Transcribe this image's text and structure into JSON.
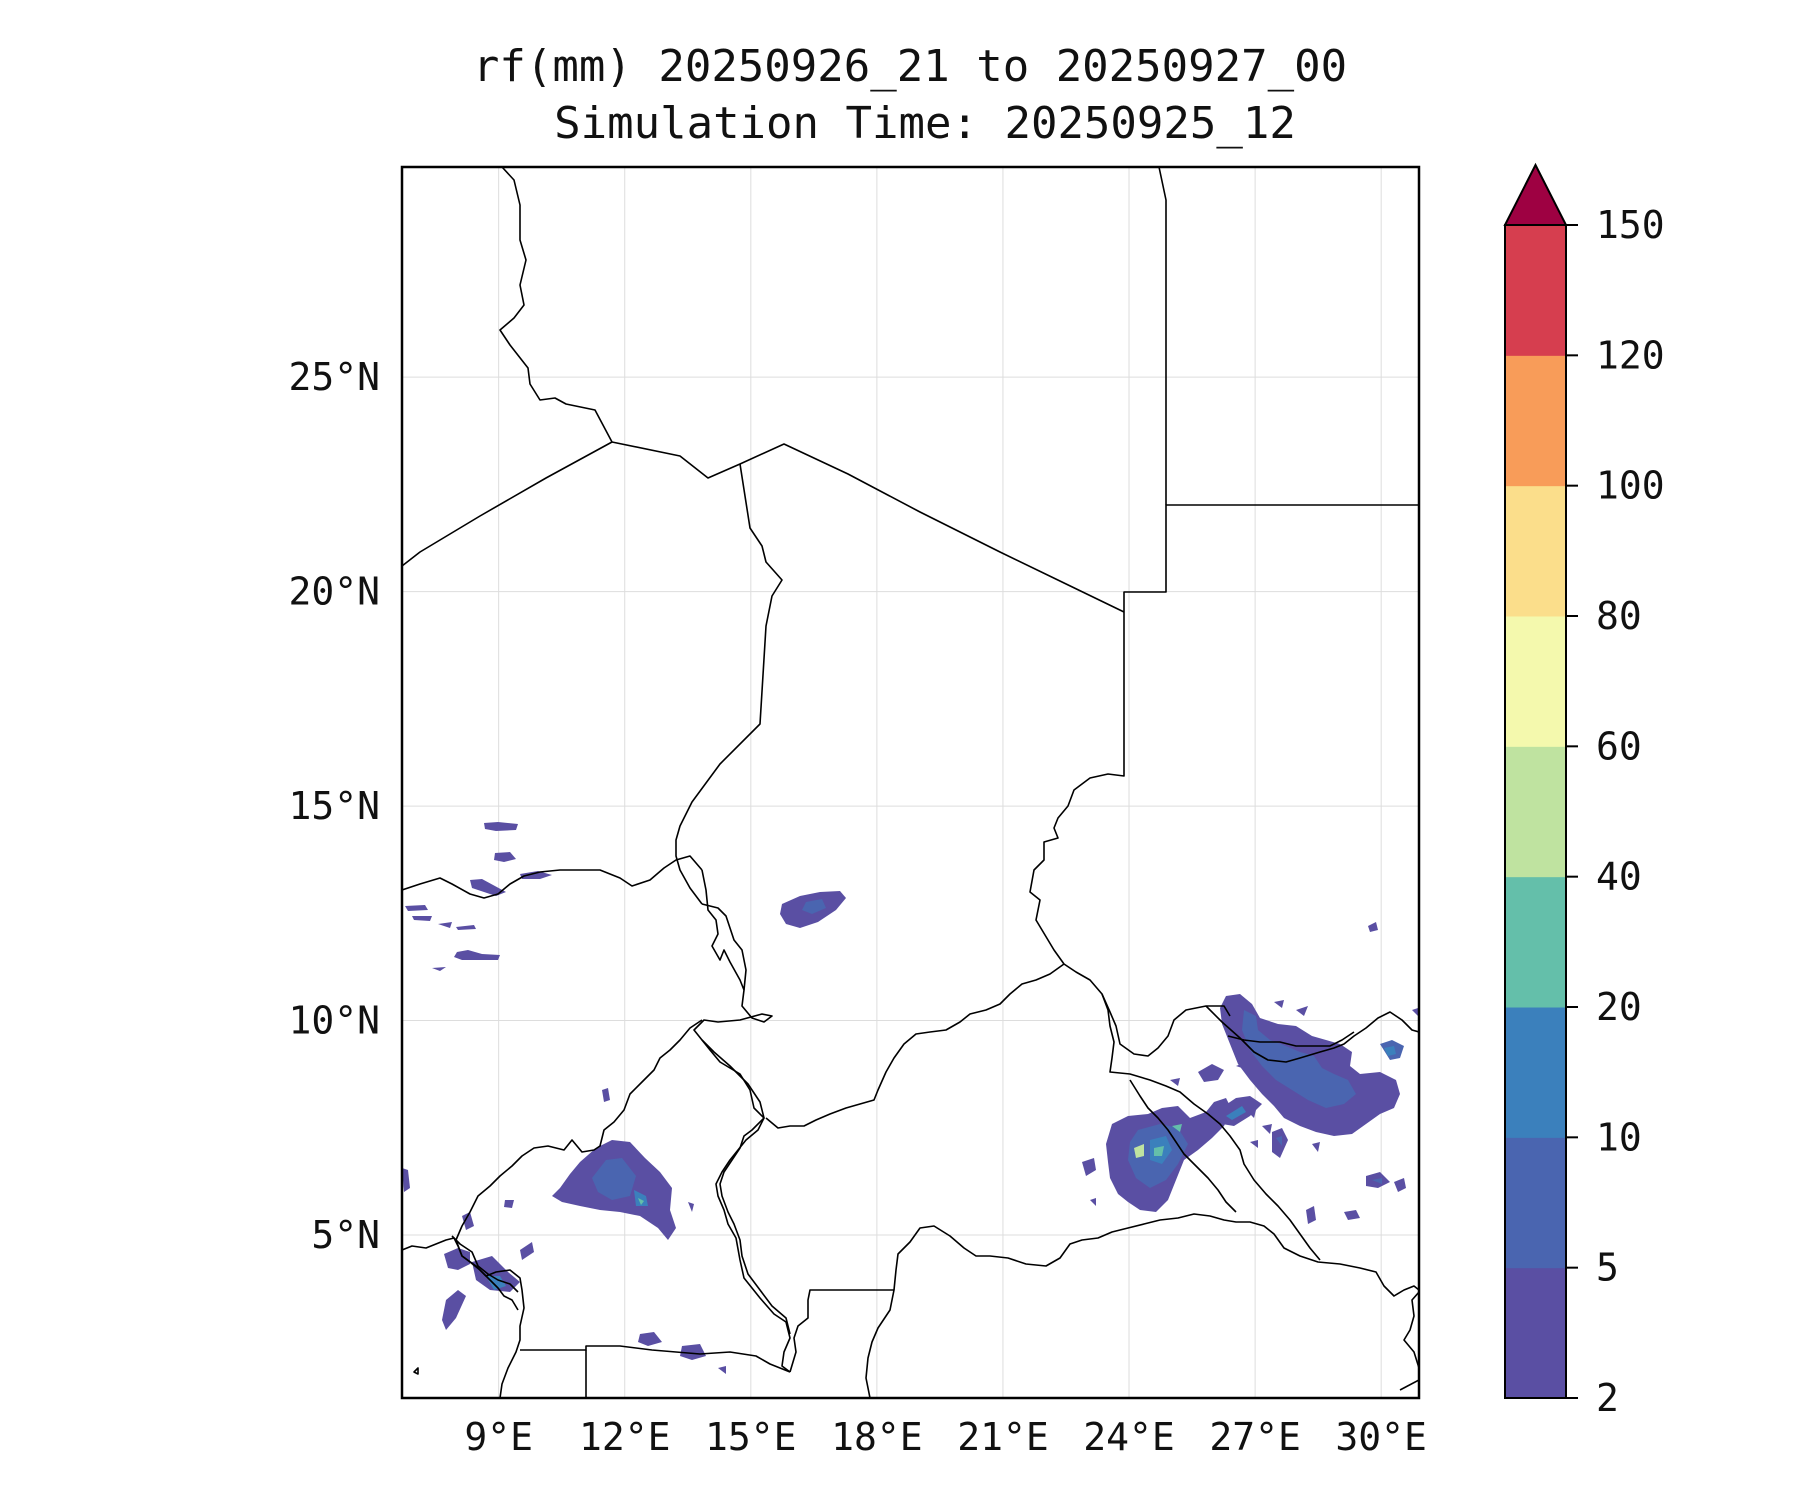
{
  "title": {
    "line1": "rf(mm) 20250926_21 to 20250927_00",
    "line2": "Simulation Time: 20250925_12"
  },
  "map": {
    "lon_range": [
      6.7,
      30.9
    ],
    "lat_range": [
      1.2,
      29.9
    ],
    "lon_ticks": [
      {
        "value": 9,
        "label": "9°E"
      },
      {
        "value": 12,
        "label": "12°E"
      },
      {
        "value": 15,
        "label": "15°E"
      },
      {
        "value": 18,
        "label": "18°E"
      },
      {
        "value": 21,
        "label": "21°E"
      },
      {
        "value": 24,
        "label": "24°E"
      },
      {
        "value": 27,
        "label": "27°E"
      },
      {
        "value": 30,
        "label": "30°E"
      }
    ],
    "lat_ticks": [
      {
        "value": 5,
        "label": "5°N"
      },
      {
        "value": 10,
        "label": "10°N"
      },
      {
        "value": 15,
        "label": "15°N"
      },
      {
        "value": 20,
        "label": "20°N"
      },
      {
        "value": 25,
        "label": "25°N"
      }
    ],
    "gridlines": true
  },
  "colorbar": {
    "levels": [
      {
        "value": 2,
        "label": "2"
      },
      {
        "value": 5,
        "label": "5"
      },
      {
        "value": 10,
        "label": "10"
      },
      {
        "value": 20,
        "label": "20"
      },
      {
        "value": 40,
        "label": "40"
      },
      {
        "value": 60,
        "label": "60"
      },
      {
        "value": 80,
        "label": "80"
      },
      {
        "value": 100,
        "label": "100"
      },
      {
        "value": 120,
        "label": "120"
      },
      {
        "value": 150,
        "label": "150"
      }
    ],
    "colors": [
      "#5a4fa3",
      "#4a65b0",
      "#3b80bc",
      "#64bfaa",
      "#bfe3a0",
      "#f4f9ad",
      "#fbde8b",
      "#f89c59",
      "#d63e4f"
    ],
    "extend_color": "#9e0142",
    "extend": "max"
  }
}
